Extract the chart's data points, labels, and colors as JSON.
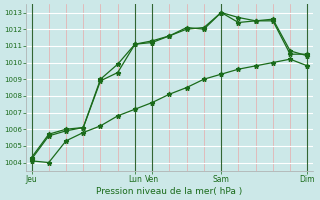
{
  "title": "",
  "xlabel": "Pression niveau de la mer( hPa )",
  "ylabel": "",
  "bg_color": "#cce8e8",
  "grid_h_color": "#ffffff",
  "grid_v_color": "#e8aaaa",
  "line_color": "#1a6b1a",
  "vline_color": "#557755",
  "ylim": [
    1003.5,
    1013.5
  ],
  "yticks": [
    1004,
    1005,
    1006,
    1007,
    1008,
    1009,
    1010,
    1011,
    1012,
    1013
  ],
  "series1_x": [
    0,
    1,
    2,
    3,
    4,
    5,
    6,
    7,
    8,
    9,
    10,
    11,
    12,
    13,
    14,
    15,
    16
  ],
  "series1_y": [
    1004.1,
    1004.0,
    1005.3,
    1005.8,
    1006.2,
    1006.8,
    1007.2,
    1007.6,
    1008.1,
    1008.5,
    1009.0,
    1009.3,
    1009.6,
    1009.8,
    1010.0,
    1010.2,
    1009.8
  ],
  "series2_x": [
    0,
    1,
    2,
    3,
    4,
    5,
    6,
    7,
    8,
    9,
    10,
    11,
    12,
    13,
    14,
    15,
    16
  ],
  "series2_y": [
    1004.2,
    1005.6,
    1005.9,
    1006.1,
    1008.9,
    1009.4,
    1011.1,
    1011.3,
    1011.6,
    1012.0,
    1012.1,
    1013.0,
    1012.7,
    1012.5,
    1012.5,
    1010.5,
    1010.5
  ],
  "series3_x": [
    0,
    1,
    2,
    3,
    4,
    5,
    6,
    7,
    8,
    9,
    10,
    11,
    12,
    13,
    14,
    15,
    16
  ],
  "series3_y": [
    1004.3,
    1005.7,
    1006.0,
    1006.1,
    1009.0,
    1009.9,
    1011.1,
    1011.2,
    1011.6,
    1012.1,
    1012.0,
    1013.0,
    1012.4,
    1012.5,
    1012.6,
    1010.7,
    1010.4
  ],
  "major_xtick_positions": [
    0,
    6,
    7,
    11,
    16
  ],
  "major_xtick_labels": [
    "Jeu",
    "Lun",
    "Ven",
    "Sam",
    "Dim"
  ],
  "xlim": [
    -0.3,
    16.3
  ]
}
